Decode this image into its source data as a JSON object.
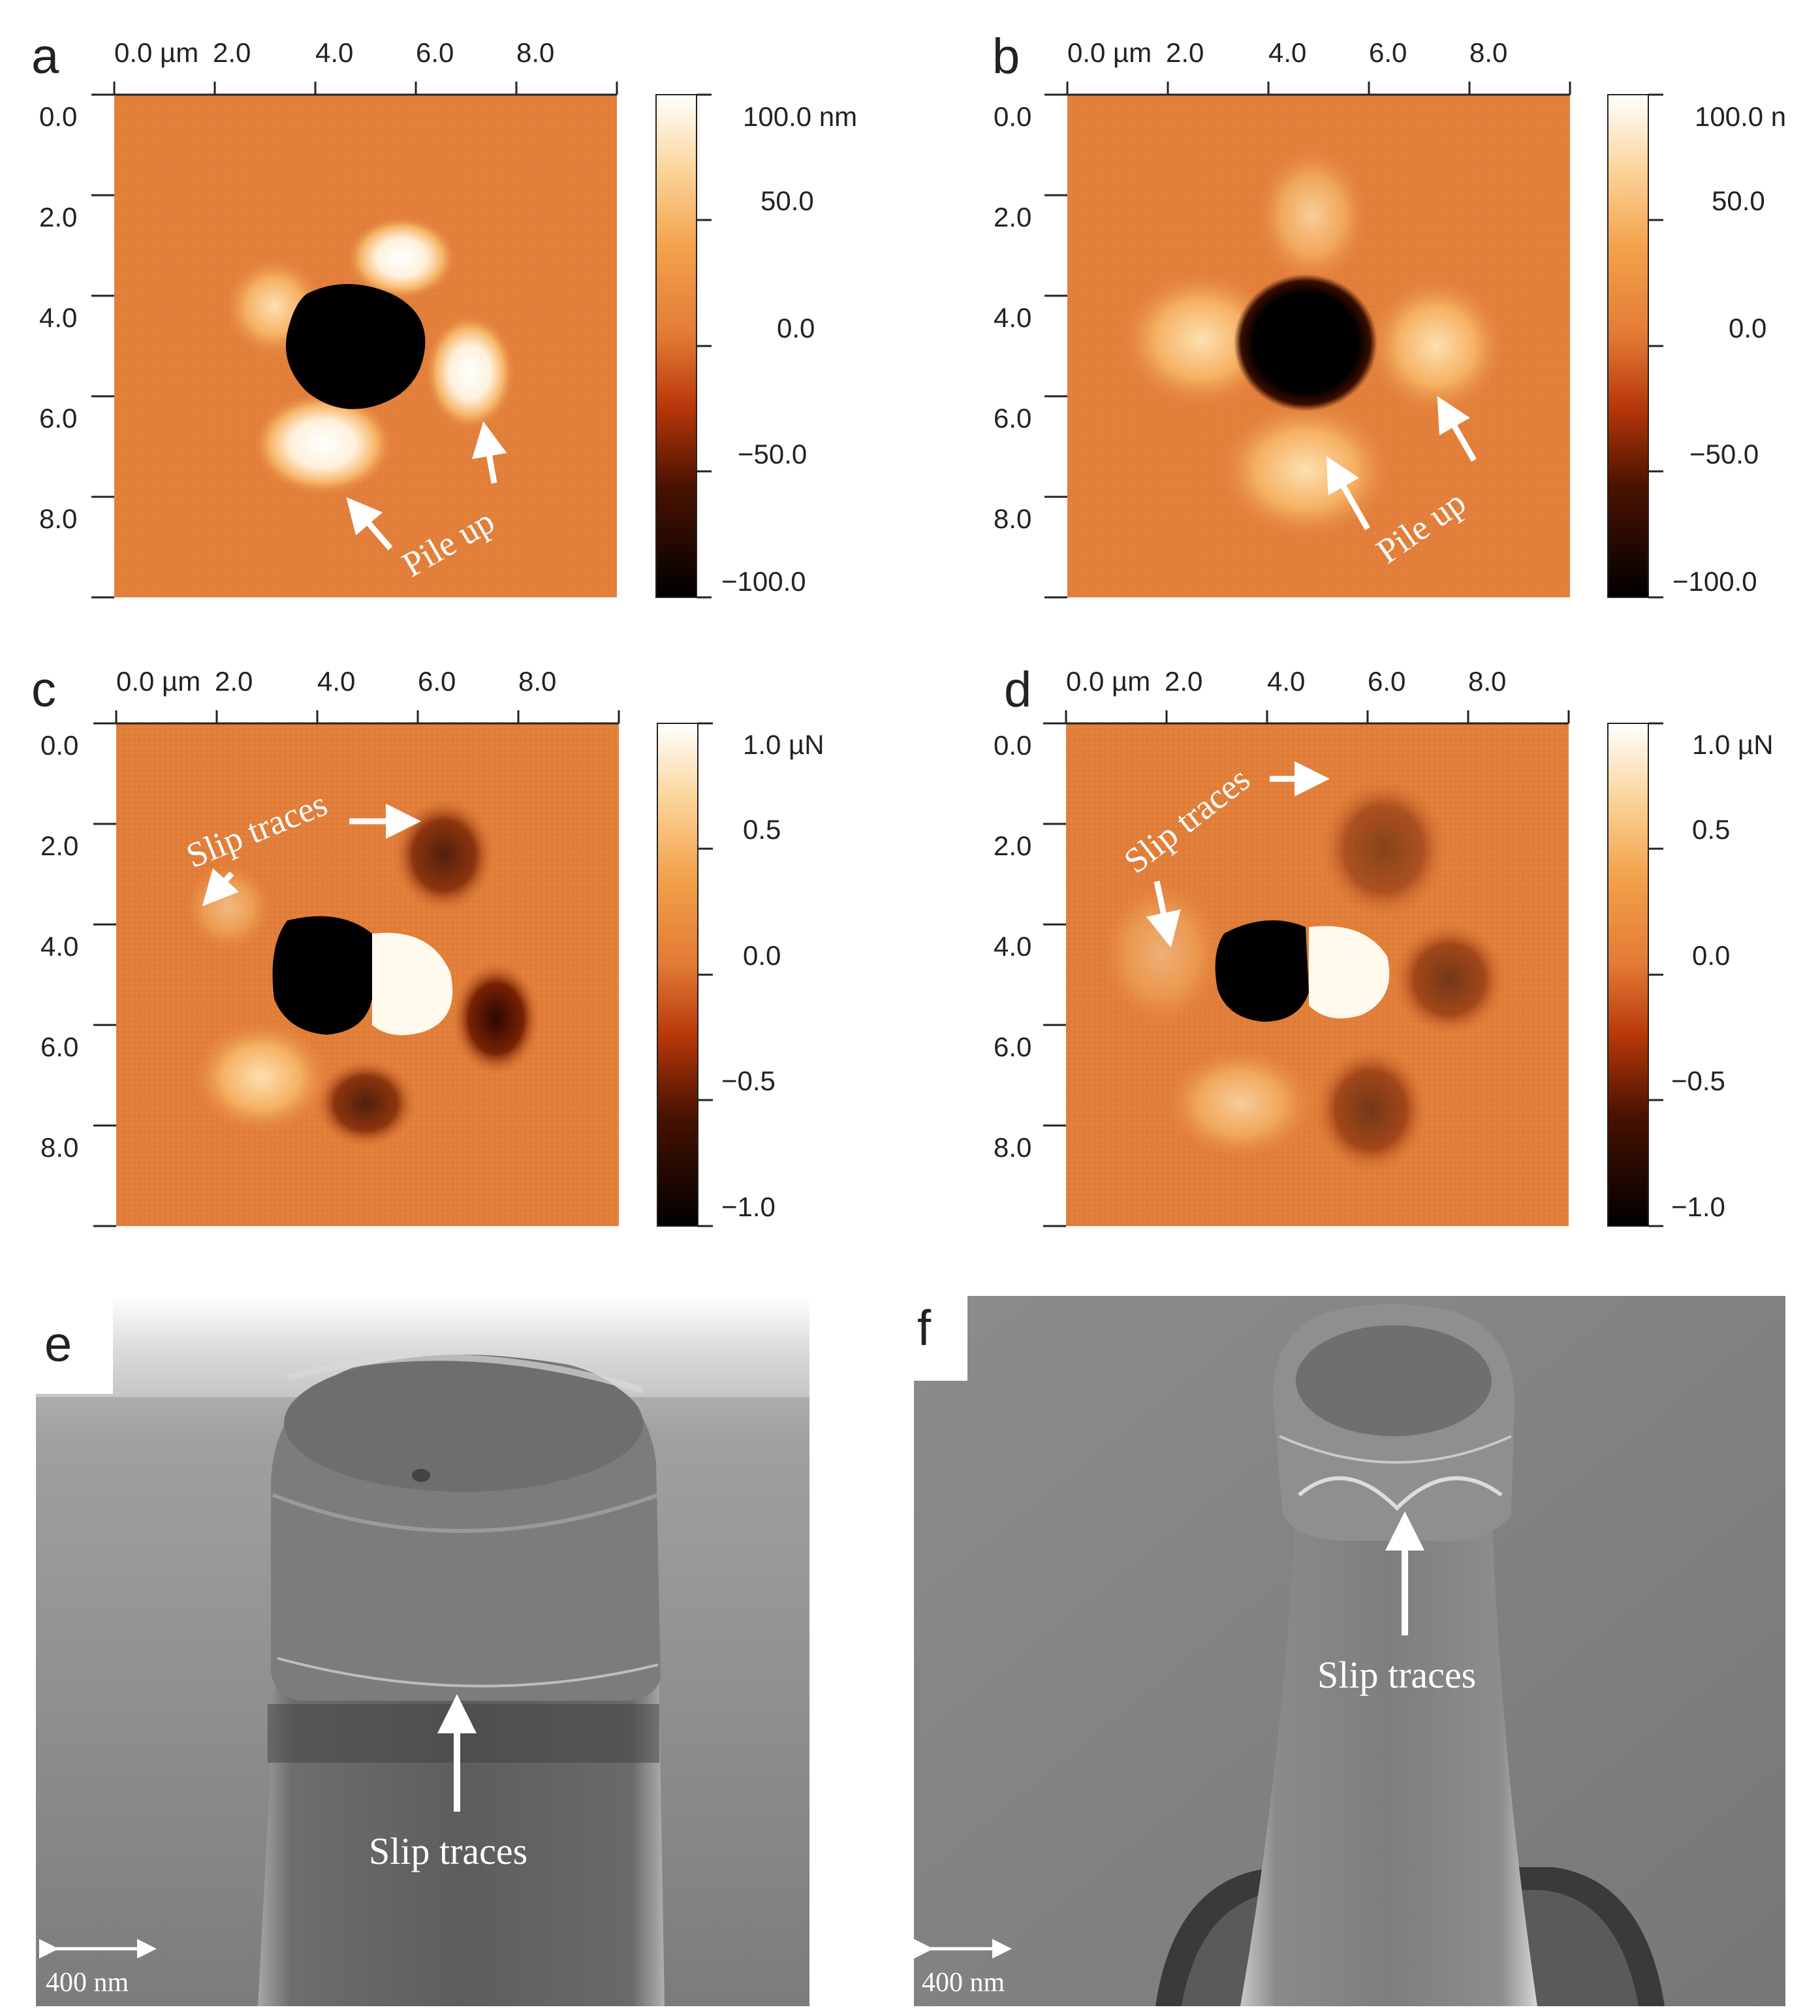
{
  "panels": {
    "a": {
      "letter": "a",
      "x_ticks": [
        "0.0 µm",
        "2.0",
        "4.0",
        "6.0",
        "8.0"
      ],
      "y_ticks": [
        "0.0",
        "2.0",
        "4.0",
        "6.0",
        "8.0"
      ],
      "colorbar_ticks": [
        "100.0 nm",
        "50.0",
        "0.0",
        "−50.0",
        "−100.0"
      ],
      "annotation": "Pile up"
    },
    "b": {
      "letter": "b",
      "x_ticks": [
        "0.0 µm",
        "2.0",
        "4.0",
        "6.0",
        "8.0"
      ],
      "y_ticks": [
        "0.0",
        "2.0",
        "4.0",
        "6.0",
        "8.0"
      ],
      "colorbar_ticks": [
        "100.0 n",
        "50.0",
        "0.0",
        "−50.0",
        "−100.0"
      ],
      "annotation": "Pile up"
    },
    "c": {
      "letter": "c",
      "x_ticks": [
        "0.0 µm",
        "2.0",
        "4.0",
        "6.0",
        "8.0"
      ],
      "y_ticks": [
        "0.0",
        "2.0",
        "4.0",
        "6.0",
        "8.0"
      ],
      "colorbar_ticks": [
        "1.0 µN",
        "0.5",
        "0.0",
        "−0.5",
        "−1.0"
      ],
      "annotation": "Slip traces"
    },
    "d": {
      "letter": "d",
      "x_ticks": [
        "0.0 µm",
        "2.0",
        "4.0",
        "6.0",
        "8.0"
      ],
      "y_ticks": [
        "0.0",
        "2.0",
        "4.0",
        "6.0",
        "8.0"
      ],
      "colorbar_ticks": [
        "1.0 µN",
        "0.5",
        "0.0",
        "−0.5",
        "−1.0"
      ],
      "annotation": "Slip traces"
    },
    "e": {
      "letter": "e",
      "annotation": "Slip traces",
      "scale_bar": "400 nm"
    },
    "f": {
      "letter": "f",
      "annotation": "Slip traces",
      "scale_bar": "400 nm"
    }
  },
  "colors": {
    "afm_background": "#e2803c",
    "afm_dark": "#000000",
    "afm_bright": "#fff6e6",
    "sem_background": "#8a8a8a",
    "annotation": "#ffffff"
  }
}
